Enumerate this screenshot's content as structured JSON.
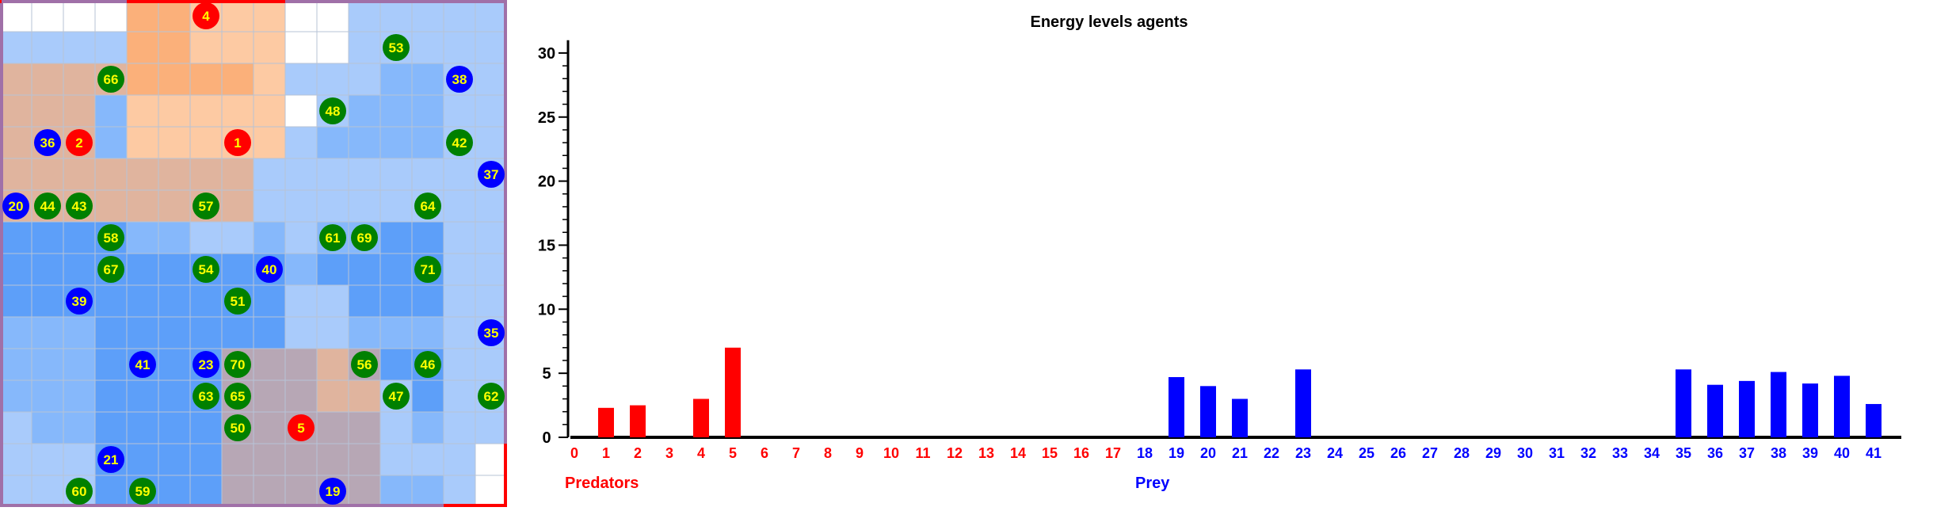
{
  "grid": {
    "rows": 16,
    "cols": 16,
    "palette": {
      "w": "#ffffff",
      "o": "#fdcaa3",
      "O": "#fbb07a",
      "t": "#e0b49e",
      "T": "#d0aaa0",
      "l": "#a9cbfb",
      "m": "#86b8fb",
      "b": "#5d9ff9",
      "g": "#b7a7b5"
    },
    "cells": [
      "wwwwOOooowwlllll",
      "llllOOooowwlllll",
      "ttttOOOOolllmmll",
      "tttmooooowlmmmll",
      "tttmooooolmmmmll",
      "ttttttttllllllll",
      "ttttttttllllllll",
      "bbbbmmllmlmmbbll",
      "bbbbbbbbbmbbbbll",
      "bbbbbbbbbllbbbll",
      "mmmbbbbbbllmmmll",
      "mmmbbbbgggtgbbll",
      "mmmbbbbgggttlbll",
      "lmmbbbbggggglmll",
      "lllbbbbggggglllw",
      "lllbbbbgggggmmlw"
    ],
    "agents": [
      {
        "id": "4",
        "kind": "predator",
        "col": 6,
        "row": 0
      },
      {
        "id": "53",
        "kind": "plant",
        "col": 12,
        "row": 1
      },
      {
        "id": "66",
        "kind": "plant",
        "col": 3,
        "row": 2
      },
      {
        "id": "38",
        "kind": "prey",
        "col": 14,
        "row": 2
      },
      {
        "id": "48",
        "kind": "plant",
        "col": 10,
        "row": 3
      },
      {
        "id": "36",
        "kind": "prey",
        "col": 1,
        "row": 4
      },
      {
        "id": "2",
        "kind": "predator",
        "col": 2,
        "row": 4
      },
      {
        "id": "1",
        "kind": "predator",
        "col": 7,
        "row": 4
      },
      {
        "id": "42",
        "kind": "plant",
        "col": 14,
        "row": 4
      },
      {
        "id": "37",
        "kind": "prey",
        "col": 15,
        "row": 5
      },
      {
        "id": "20",
        "kind": "prey",
        "col": 0,
        "row": 6
      },
      {
        "id": "44",
        "kind": "plant",
        "col": 1,
        "row": 6
      },
      {
        "id": "43",
        "kind": "plant",
        "col": 2,
        "row": 6
      },
      {
        "id": "57",
        "kind": "plant",
        "col": 6,
        "row": 6
      },
      {
        "id": "64",
        "kind": "plant",
        "col": 13,
        "row": 6
      },
      {
        "id": "58",
        "kind": "plant",
        "col": 3,
        "row": 7
      },
      {
        "id": "61",
        "kind": "plant",
        "col": 10,
        "row": 7
      },
      {
        "id": "69",
        "kind": "plant",
        "col": 11,
        "row": 7
      },
      {
        "id": "67",
        "kind": "plant",
        "col": 3,
        "row": 8
      },
      {
        "id": "54",
        "kind": "plant",
        "col": 6,
        "row": 8
      },
      {
        "id": "40",
        "kind": "prey",
        "col": 8,
        "row": 8
      },
      {
        "id": "71",
        "kind": "plant",
        "col": 13,
        "row": 8
      },
      {
        "id": "39",
        "kind": "prey",
        "col": 2,
        "row": 9
      },
      {
        "id": "51",
        "kind": "plant",
        "col": 7,
        "row": 9
      },
      {
        "id": "35",
        "kind": "prey",
        "col": 15,
        "row": 10
      },
      {
        "id": "41",
        "kind": "prey",
        "col": 4,
        "row": 11
      },
      {
        "id": "23",
        "kind": "prey",
        "col": 6,
        "row": 11
      },
      {
        "id": "70",
        "kind": "plant",
        "col": 7,
        "row": 11
      },
      {
        "id": "56",
        "kind": "plant",
        "col": 11,
        "row": 11
      },
      {
        "id": "46",
        "kind": "plant",
        "col": 13,
        "row": 11
      },
      {
        "id": "63",
        "kind": "plant",
        "col": 6,
        "row": 12
      },
      {
        "id": "65",
        "kind": "plant",
        "col": 7,
        "row": 12
      },
      {
        "id": "47",
        "kind": "plant",
        "col": 12,
        "row": 12
      },
      {
        "id": "62",
        "kind": "plant",
        "col": 15,
        "row": 12
      },
      {
        "id": "50",
        "kind": "plant",
        "col": 7,
        "row": 13
      },
      {
        "id": "5",
        "kind": "predator",
        "col": 9,
        "row": 13
      },
      {
        "id": "21",
        "kind": "prey",
        "col": 3,
        "row": 14
      },
      {
        "id": "60",
        "kind": "plant",
        "col": 2,
        "row": 15
      },
      {
        "id": "59",
        "kind": "plant",
        "col": 4,
        "row": 15
      },
      {
        "id": "19",
        "kind": "prey",
        "col": 10,
        "row": 15
      }
    ],
    "agent_colors": {
      "predator": "#ff0000",
      "prey": "#0000ff",
      "plant": "#008000"
    }
  },
  "chart_data": {
    "type": "bar",
    "title": "Energy levels agents",
    "xlabel": "",
    "ylabel": "",
    "ylim": [
      0,
      31
    ],
    "yticks": [
      0,
      5,
      10,
      15,
      20,
      25,
      30
    ],
    "categories": [
      "0",
      "1",
      "2",
      "3",
      "4",
      "5",
      "6",
      "7",
      "8",
      "9",
      "10",
      "11",
      "12",
      "13",
      "14",
      "15",
      "16",
      "17",
      "18",
      "19",
      "20",
      "21",
      "22",
      "23",
      "24",
      "25",
      "26",
      "27",
      "28",
      "29",
      "30",
      "31",
      "32",
      "33",
      "34",
      "35",
      "36",
      "37",
      "38",
      "39",
      "40",
      "41"
    ],
    "groups": [
      {
        "label": "Predators",
        "color": "#ff0000",
        "from": 0,
        "to": 17
      },
      {
        "label": "Prey",
        "color": "#0000ff",
        "from": 18,
        "to": 41
      }
    ],
    "values": [
      0,
      2.3,
      2.5,
      0,
      3.0,
      7.0,
      0,
      0,
      0,
      0,
      0,
      0,
      0,
      0,
      0,
      0,
      0,
      0,
      0,
      4.7,
      4.0,
      3.0,
      0,
      5.3,
      0,
      0,
      0,
      0,
      0,
      0,
      0,
      0,
      0,
      0,
      0,
      5.3,
      4.1,
      4.4,
      5.1,
      4.2,
      4.8,
      2.6
    ],
    "grid": false,
    "legend": "none"
  }
}
